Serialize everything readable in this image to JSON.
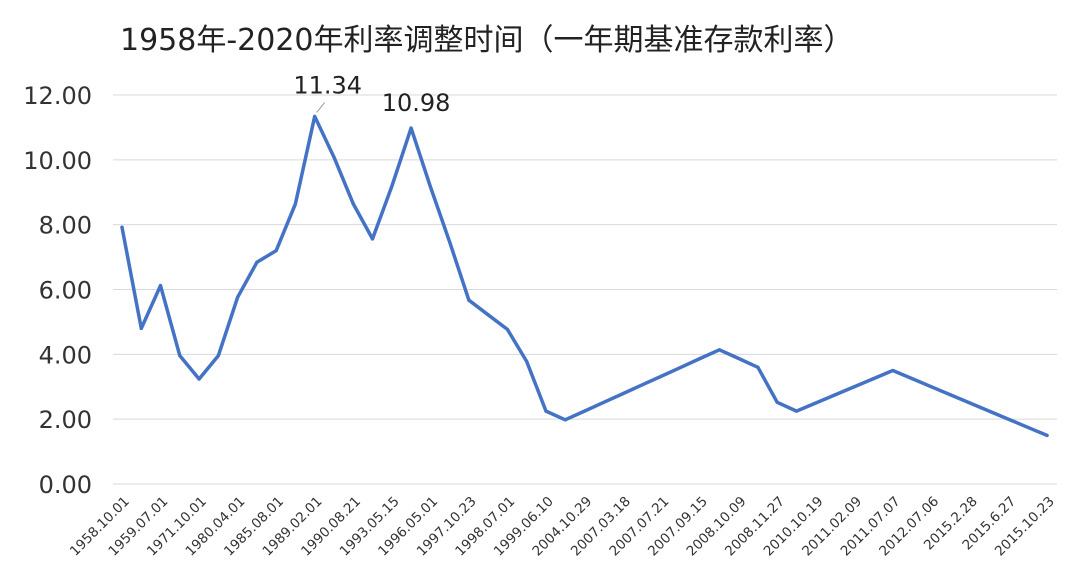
{
  "chart_data": {
    "type": "line",
    "title": "1958年-2020年利率调整时间（一年期基准存款利率）",
    "xlabel": "",
    "ylabel": "",
    "ylim": [
      0,
      12
    ],
    "yticks": [
      "0.00",
      "2.00",
      "4.00",
      "6.00",
      "8.00",
      "10.00",
      "12.00"
    ],
    "grid": true,
    "legend": "none",
    "color": "#4472c4",
    "x": [
      "1958.10.01",
      "1959.01.01",
      "1959.07.01",
      "1965.06.01",
      "1971.10.01",
      "1979.04.01",
      "1980.04.01",
      "1982.04.01",
      "1985.08.01",
      "1988.09.01",
      "1989.02.01",
      "1990.04.15",
      "1990.08.21",
      "1991.04.21",
      "1993.05.15",
      "1993.07.11",
      "1996.05.01",
      "1996.08.23",
      "1997.10.23",
      "1998.03.25",
      "1998.07.01",
      "1998.12.07",
      "1999.06.10",
      "2002.02.21",
      "2004.10.29",
      "2006.08.19",
      "2007.03.18",
      "2007.05.19",
      "2007.07.21",
      "2007.08.22",
      "2007.09.15",
      "2007.12.21",
      "2008.10.09",
      "2008.10.30",
      "2008.11.27",
      "2008.12.23",
      "2010.10.19",
      "2010.12.26",
      "2011.02.09",
      "2011.04.06",
      "2011.07.07",
      "2012.06.08",
      "2012.07.06",
      "2014.11.22",
      "2015.2.28",
      "2015.5.11",
      "2015.6.27",
      "2015.08.26",
      "2015.10.23"
    ],
    "values": [
      7.92,
      4.8,
      6.12,
      3.96,
      3.24,
      3.96,
      5.76,
      6.84,
      7.2,
      8.64,
      11.34,
      10.08,
      8.64,
      7.56,
      9.18,
      10.98,
      9.18,
      7.47,
      5.67,
      5.22,
      4.77,
      3.78,
      2.25,
      1.98,
      2.25,
      2.52,
      2.79,
      3.06,
      3.33,
      3.6,
      3.87,
      4.14,
      3.87,
      3.6,
      2.52,
      2.25,
      2.5,
      2.75,
      3.0,
      3.25,
      3.5,
      3.25,
      3.0,
      2.75,
      2.5,
      2.25,
      2.0,
      1.75,
      1.5
    ],
    "xtick_labels": [
      "1958.10.01",
      "1959.07.01",
      "1971.10.01",
      "1980.04.01",
      "1985.08.01",
      "1989.02.01",
      "1990.08.21",
      "1993.05.15",
      "1996.05.01",
      "1997.10.23",
      "1998.07.01",
      "1999.06.10",
      "2004.10.29",
      "2007.03.18",
      "2007.07.21",
      "2007.09.15",
      "2008.10.09",
      "2008.11.27",
      "2010.10.19",
      "2011.02.09",
      "2011.07.07",
      "2012.07.06",
      "2015.2.28",
      "2015.6.27",
      "2015.10.23"
    ],
    "annotations": [
      {
        "text": "11.34",
        "x": "1989.02.01",
        "y": 11.34
      },
      {
        "text": "10.98",
        "x": "1993.07.11",
        "y": 10.98
      }
    ]
  }
}
